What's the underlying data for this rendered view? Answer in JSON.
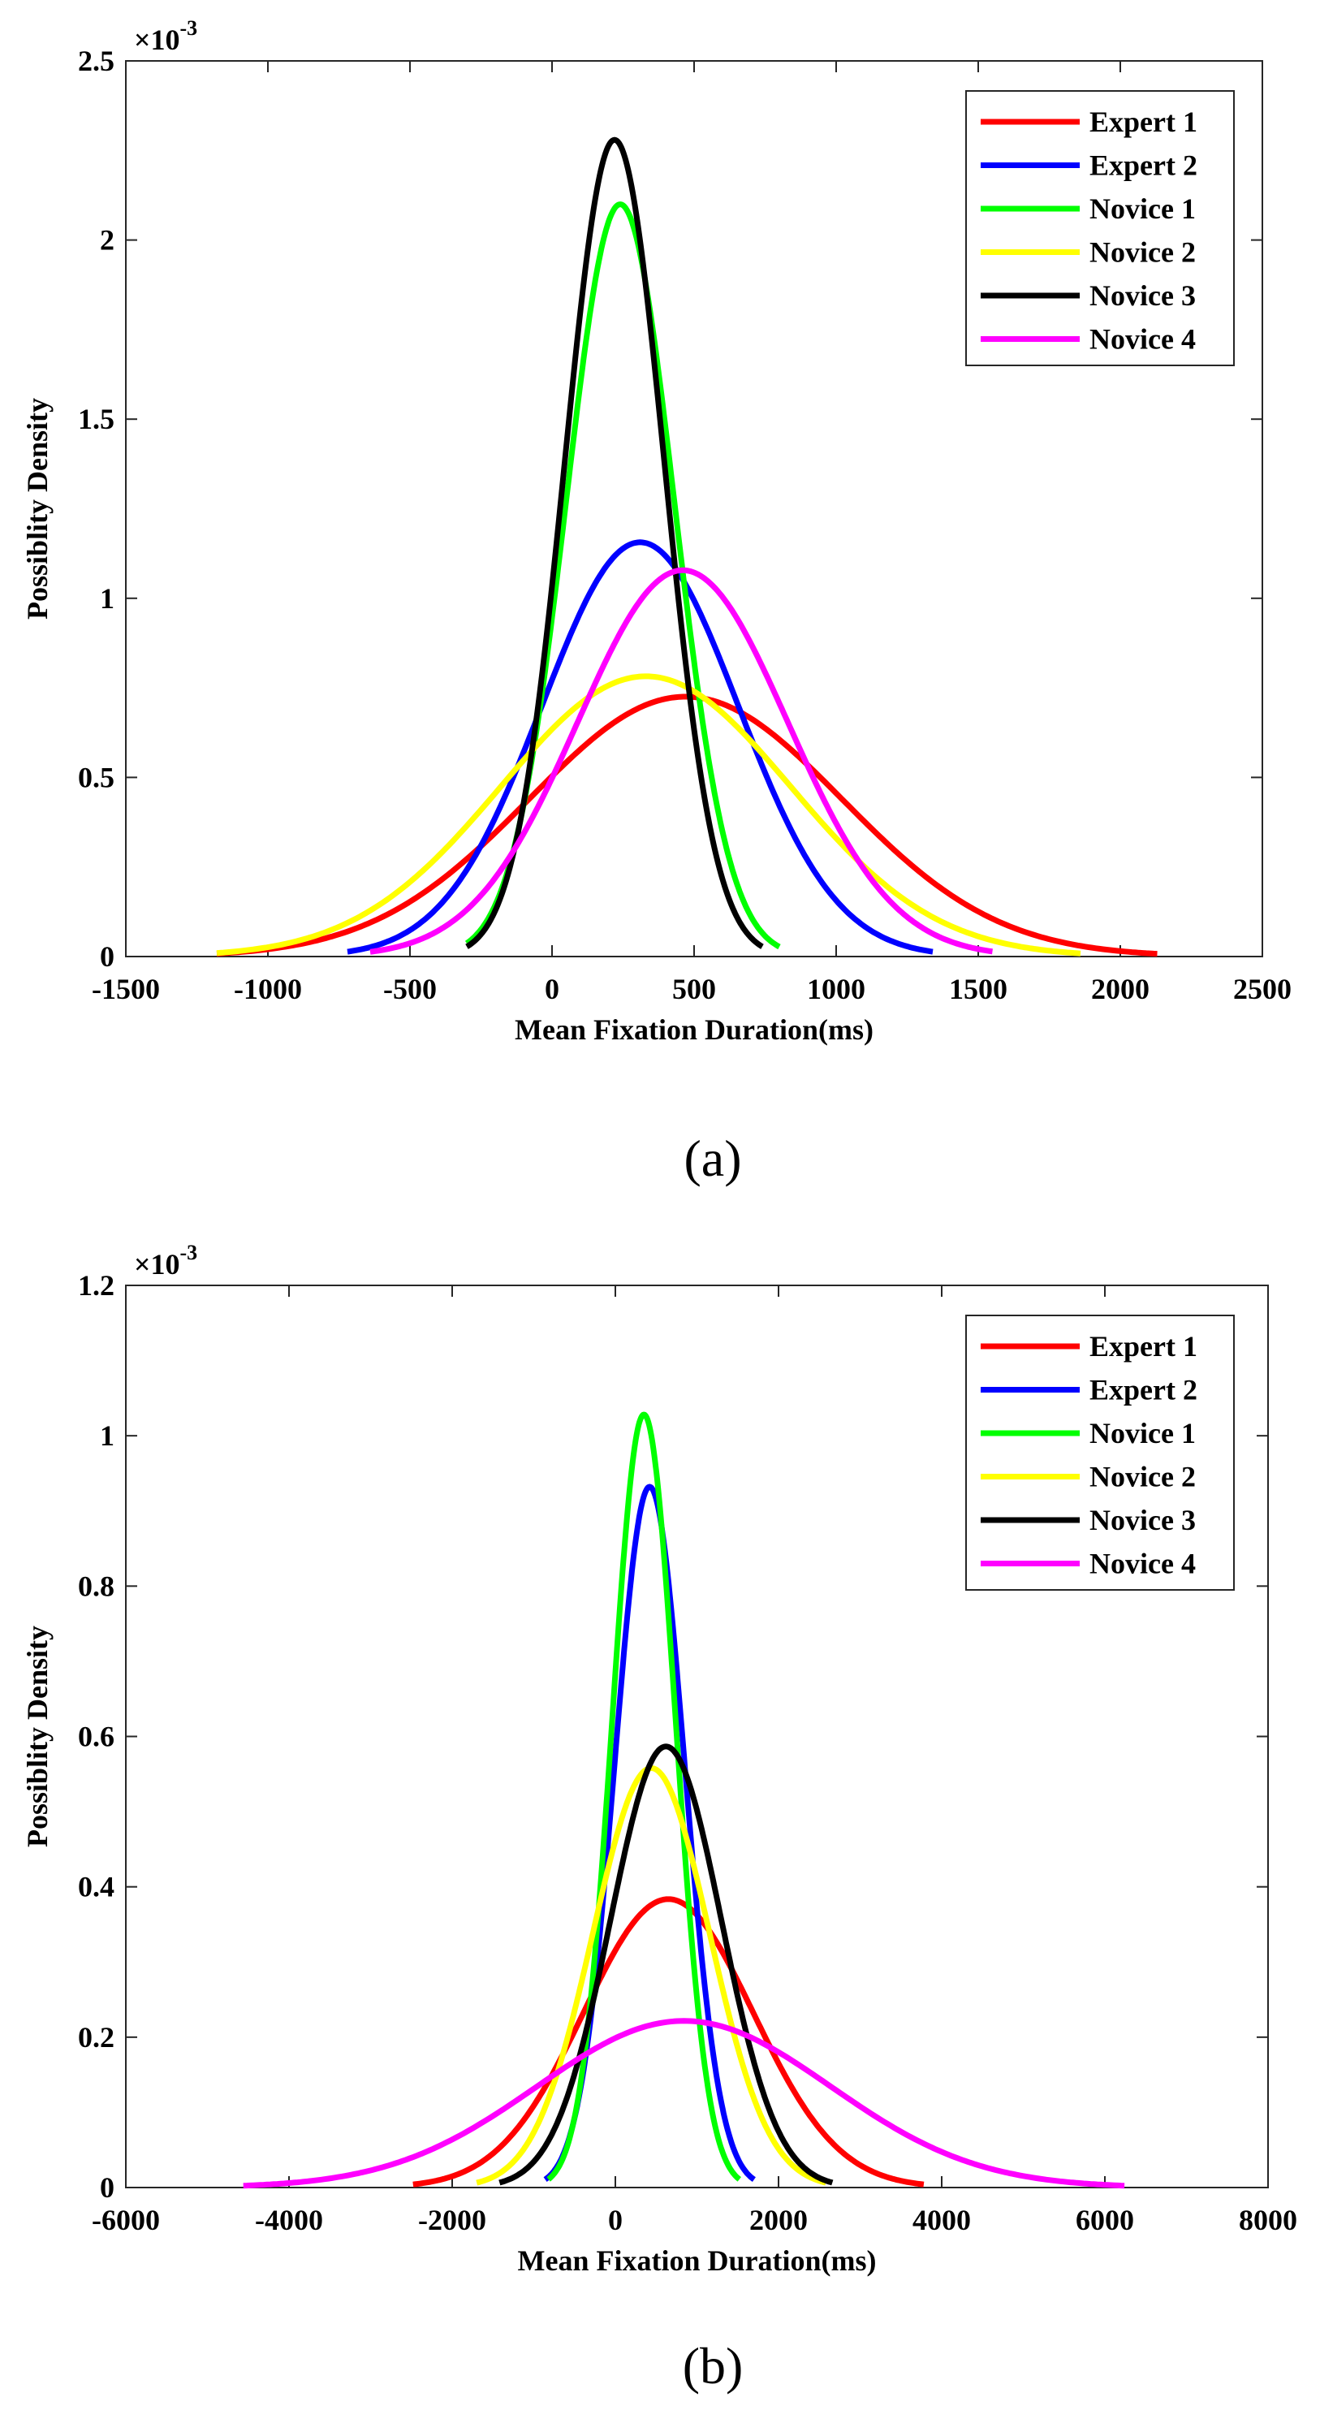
{
  "chart_data": [
    {
      "type": "line",
      "panel_label": "(a)",
      "title": "",
      "xlabel": "Mean Fixation Duration(ms)",
      "ylabel": "Possiblity Density",
      "exponent_label": "×10",
      "exponent_power": "-3",
      "xlim": [
        -1500,
        2500
      ],
      "ylim": [
        0,
        2.5
      ],
      "xticks": [
        -1500,
        -1000,
        -500,
        0,
        500,
        1000,
        1500,
        2000,
        2500
      ],
      "xtick_labels": [
        "-1500",
        "-1000",
        "-500",
        "0",
        "500",
        "1000",
        "1500",
        "2000",
        "2500"
      ],
      "yticks": [
        0,
        0.5,
        1,
        1.5,
        2,
        2.5
      ],
      "ytick_labels": [
        "0",
        "0.5",
        "1",
        "1.5",
        "2",
        "2.5"
      ],
      "legend_position": "top-right",
      "series": [
        {
          "name": "Expert 1",
          "color": "#ff0000",
          "mean": 470,
          "sd": 550,
          "x_range": [
            -1180,
            2130
          ]
        },
        {
          "name": "Expert 2",
          "color": "#0000ff",
          "mean": 310,
          "sd": 345,
          "x_range": [
            -720,
            1340
          ]
        },
        {
          "name": "Novice 1",
          "color": "#00ff00",
          "mean": 240,
          "sd": 190,
          "x_range": [
            -300,
            800
          ]
        },
        {
          "name": "Novice 2",
          "color": "#ffff00",
          "mean": 330,
          "sd": 510,
          "x_range": [
            -1180,
            1860
          ]
        },
        {
          "name": "Novice 3",
          "color": "#000000",
          "mean": 220,
          "sd": 175,
          "x_range": [
            -300,
            740
          ]
        },
        {
          "name": "Novice 4",
          "color": "#ff00ff",
          "mean": 460,
          "sd": 370,
          "x_range": [
            -640,
            1550
          ]
        }
      ]
    },
    {
      "type": "line",
      "panel_label": "(b)",
      "title": "",
      "xlabel": "Mean Fixation Duration(ms)",
      "ylabel": "Possiblity Density",
      "exponent_label": "×10",
      "exponent_power": "-3",
      "xlim": [
        -6000,
        8000
      ],
      "ylim": [
        0,
        1.2
      ],
      "xticks": [
        -6000,
        -4000,
        -2000,
        0,
        2000,
        4000,
        6000,
        8000
      ],
      "xtick_labels": [
        "-6000",
        "-4000",
        "-2000",
        "0",
        "2000",
        "4000",
        "6000",
        "8000"
      ],
      "yticks": [
        0,
        0.2,
        0.4,
        0.6,
        0.8,
        1,
        1.2
      ],
      "ytick_labels": [
        "0",
        "0.2",
        "0.4",
        "0.6",
        "0.8",
        "1",
        "1.2"
      ],
      "legend_position": "top-right",
      "series": [
        {
          "name": "Expert 1",
          "color": "#ff0000",
          "mean": 650,
          "sd": 1040,
          "x_range": [
            -2480,
            3780
          ]
        },
        {
          "name": "Expert 2",
          "color": "#0000ff",
          "mean": 420,
          "sd": 428,
          "x_range": [
            -860,
            1700
          ]
        },
        {
          "name": "Novice 1",
          "color": "#00ff00",
          "mean": 350,
          "sd": 388,
          "x_range": [
            -820,
            1520
          ]
        },
        {
          "name": "Novice 2",
          "color": "#ffff00",
          "mean": 440,
          "sd": 715,
          "x_range": [
            -1700,
            2580
          ]
        },
        {
          "name": "Novice 3",
          "color": "#000000",
          "mean": 620,
          "sd": 680,
          "x_range": [
            -1420,
            2660
          ]
        },
        {
          "name": "Novice 4",
          "color": "#ff00ff",
          "mean": 840,
          "sd": 1800,
          "x_range": [
            -4560,
            6240
          ]
        }
      ]
    }
  ]
}
